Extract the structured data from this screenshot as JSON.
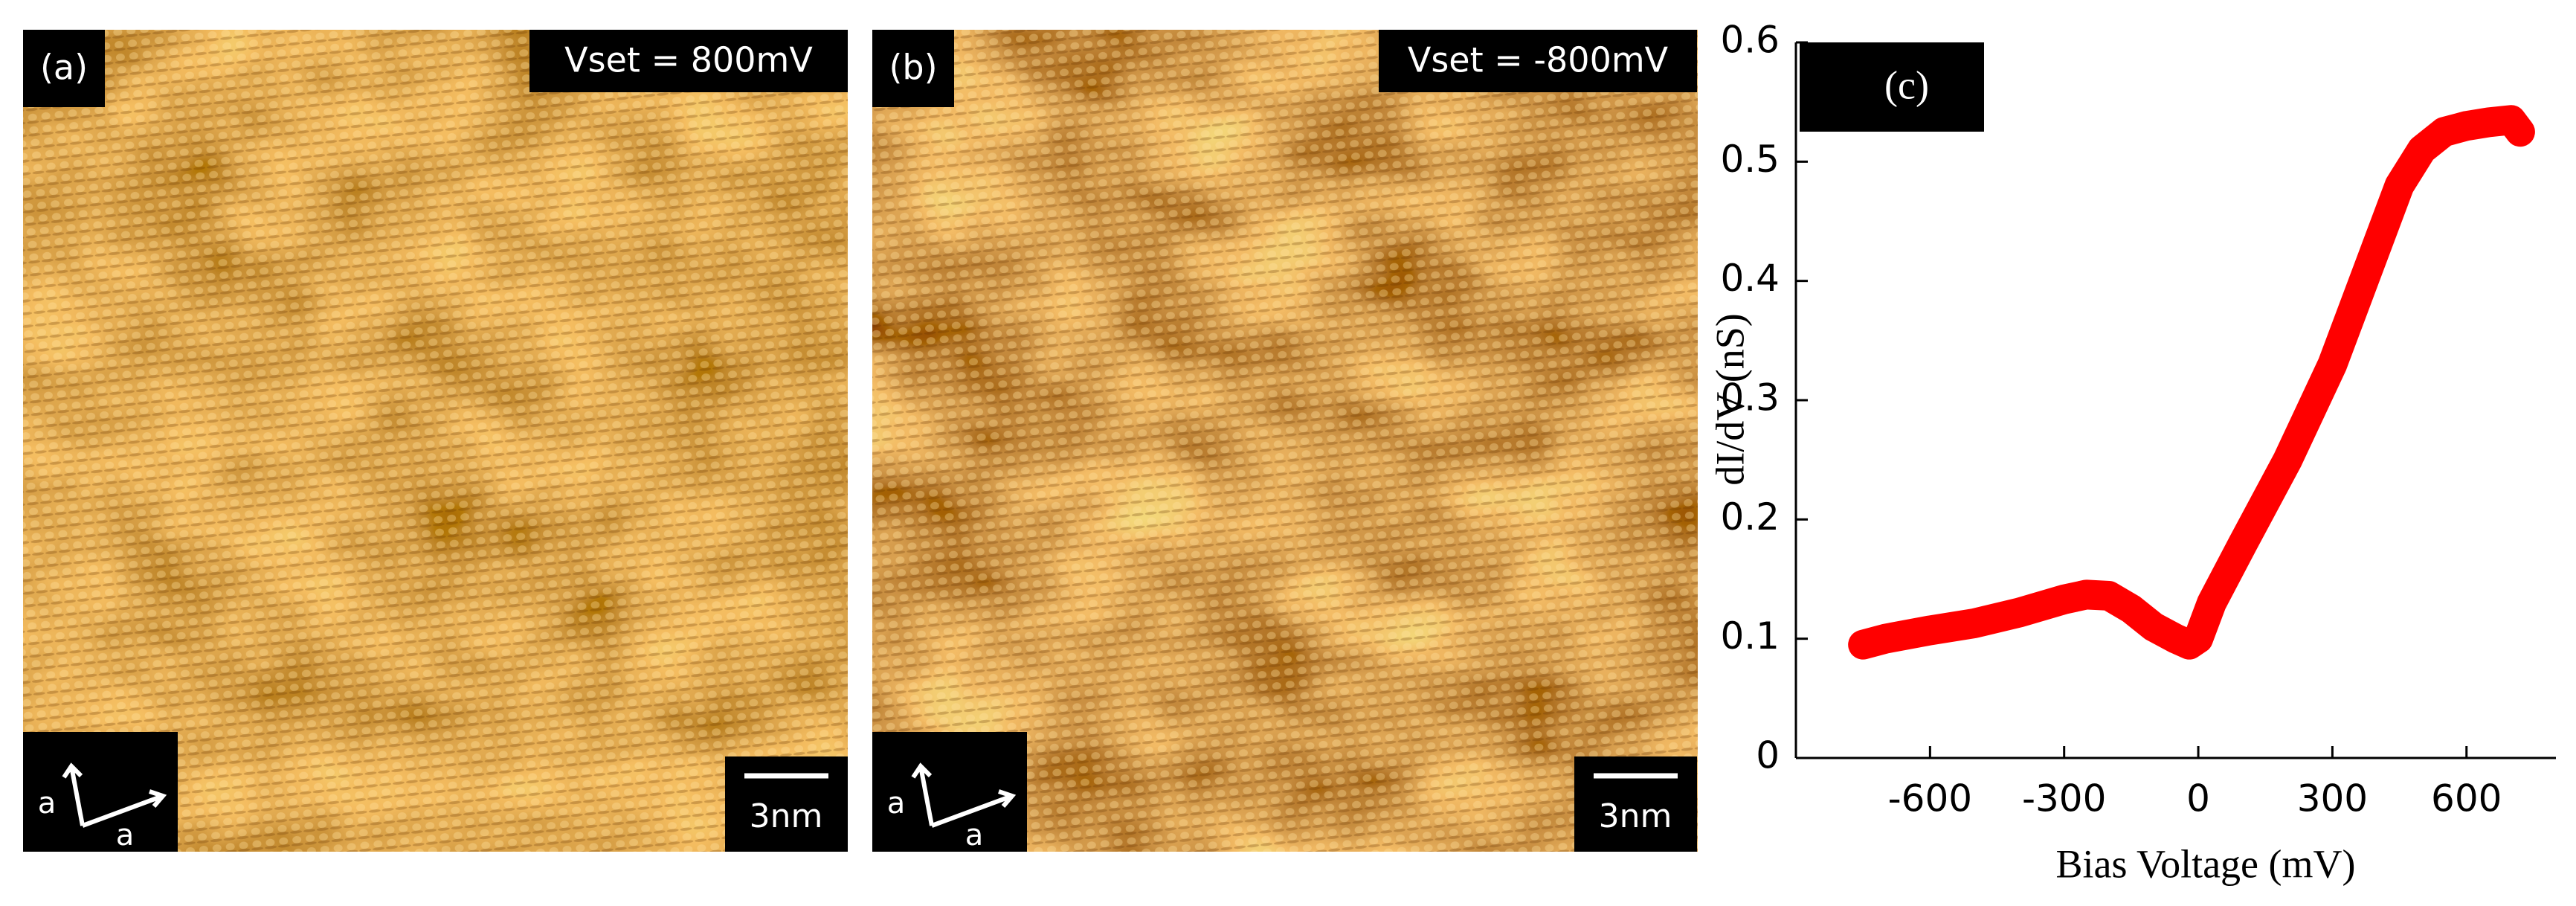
{
  "panels": [
    {
      "label": "(a)",
      "vset": "Vset = 800mV",
      "scale": "3nm",
      "axes": [
        "a",
        "a"
      ]
    },
    {
      "label": "(b)",
      "vset": "Vset = -800mV",
      "scale": "3nm",
      "axes": [
        "a",
        "a"
      ]
    }
  ],
  "chart_data": {
    "type": "line",
    "label": "(c)",
    "x_label": "Bias Voltage (mV)",
    "y_label": "dI/dV (nS)",
    "color": "#ff0000",
    "x": [
      -750,
      -700,
      -600,
      -500,
      -400,
      -300,
      -250,
      -200,
      -150,
      -100,
      -50,
      -20,
      0,
      30,
      100,
      200,
      300,
      400,
      450,
      500,
      550,
      600,
      650,
      700,
      720
    ],
    "values": [
      0.095,
      0.1,
      0.107,
      0.113,
      0.122,
      0.133,
      0.137,
      0.136,
      0.125,
      0.11,
      0.1,
      0.095,
      0.1,
      0.13,
      0.18,
      0.25,
      0.33,
      0.43,
      0.48,
      0.51,
      0.525,
      0.53,
      0.533,
      0.535,
      0.525
    ],
    "xlim": [
      -900,
      800
    ],
    "ylim": [
      0,
      0.6
    ],
    "xticks": [
      -600,
      -300,
      0,
      300,
      600
    ],
    "yticks": [
      0,
      0.1,
      0.2,
      0.3,
      0.4,
      0.5,
      0.6
    ]
  }
}
